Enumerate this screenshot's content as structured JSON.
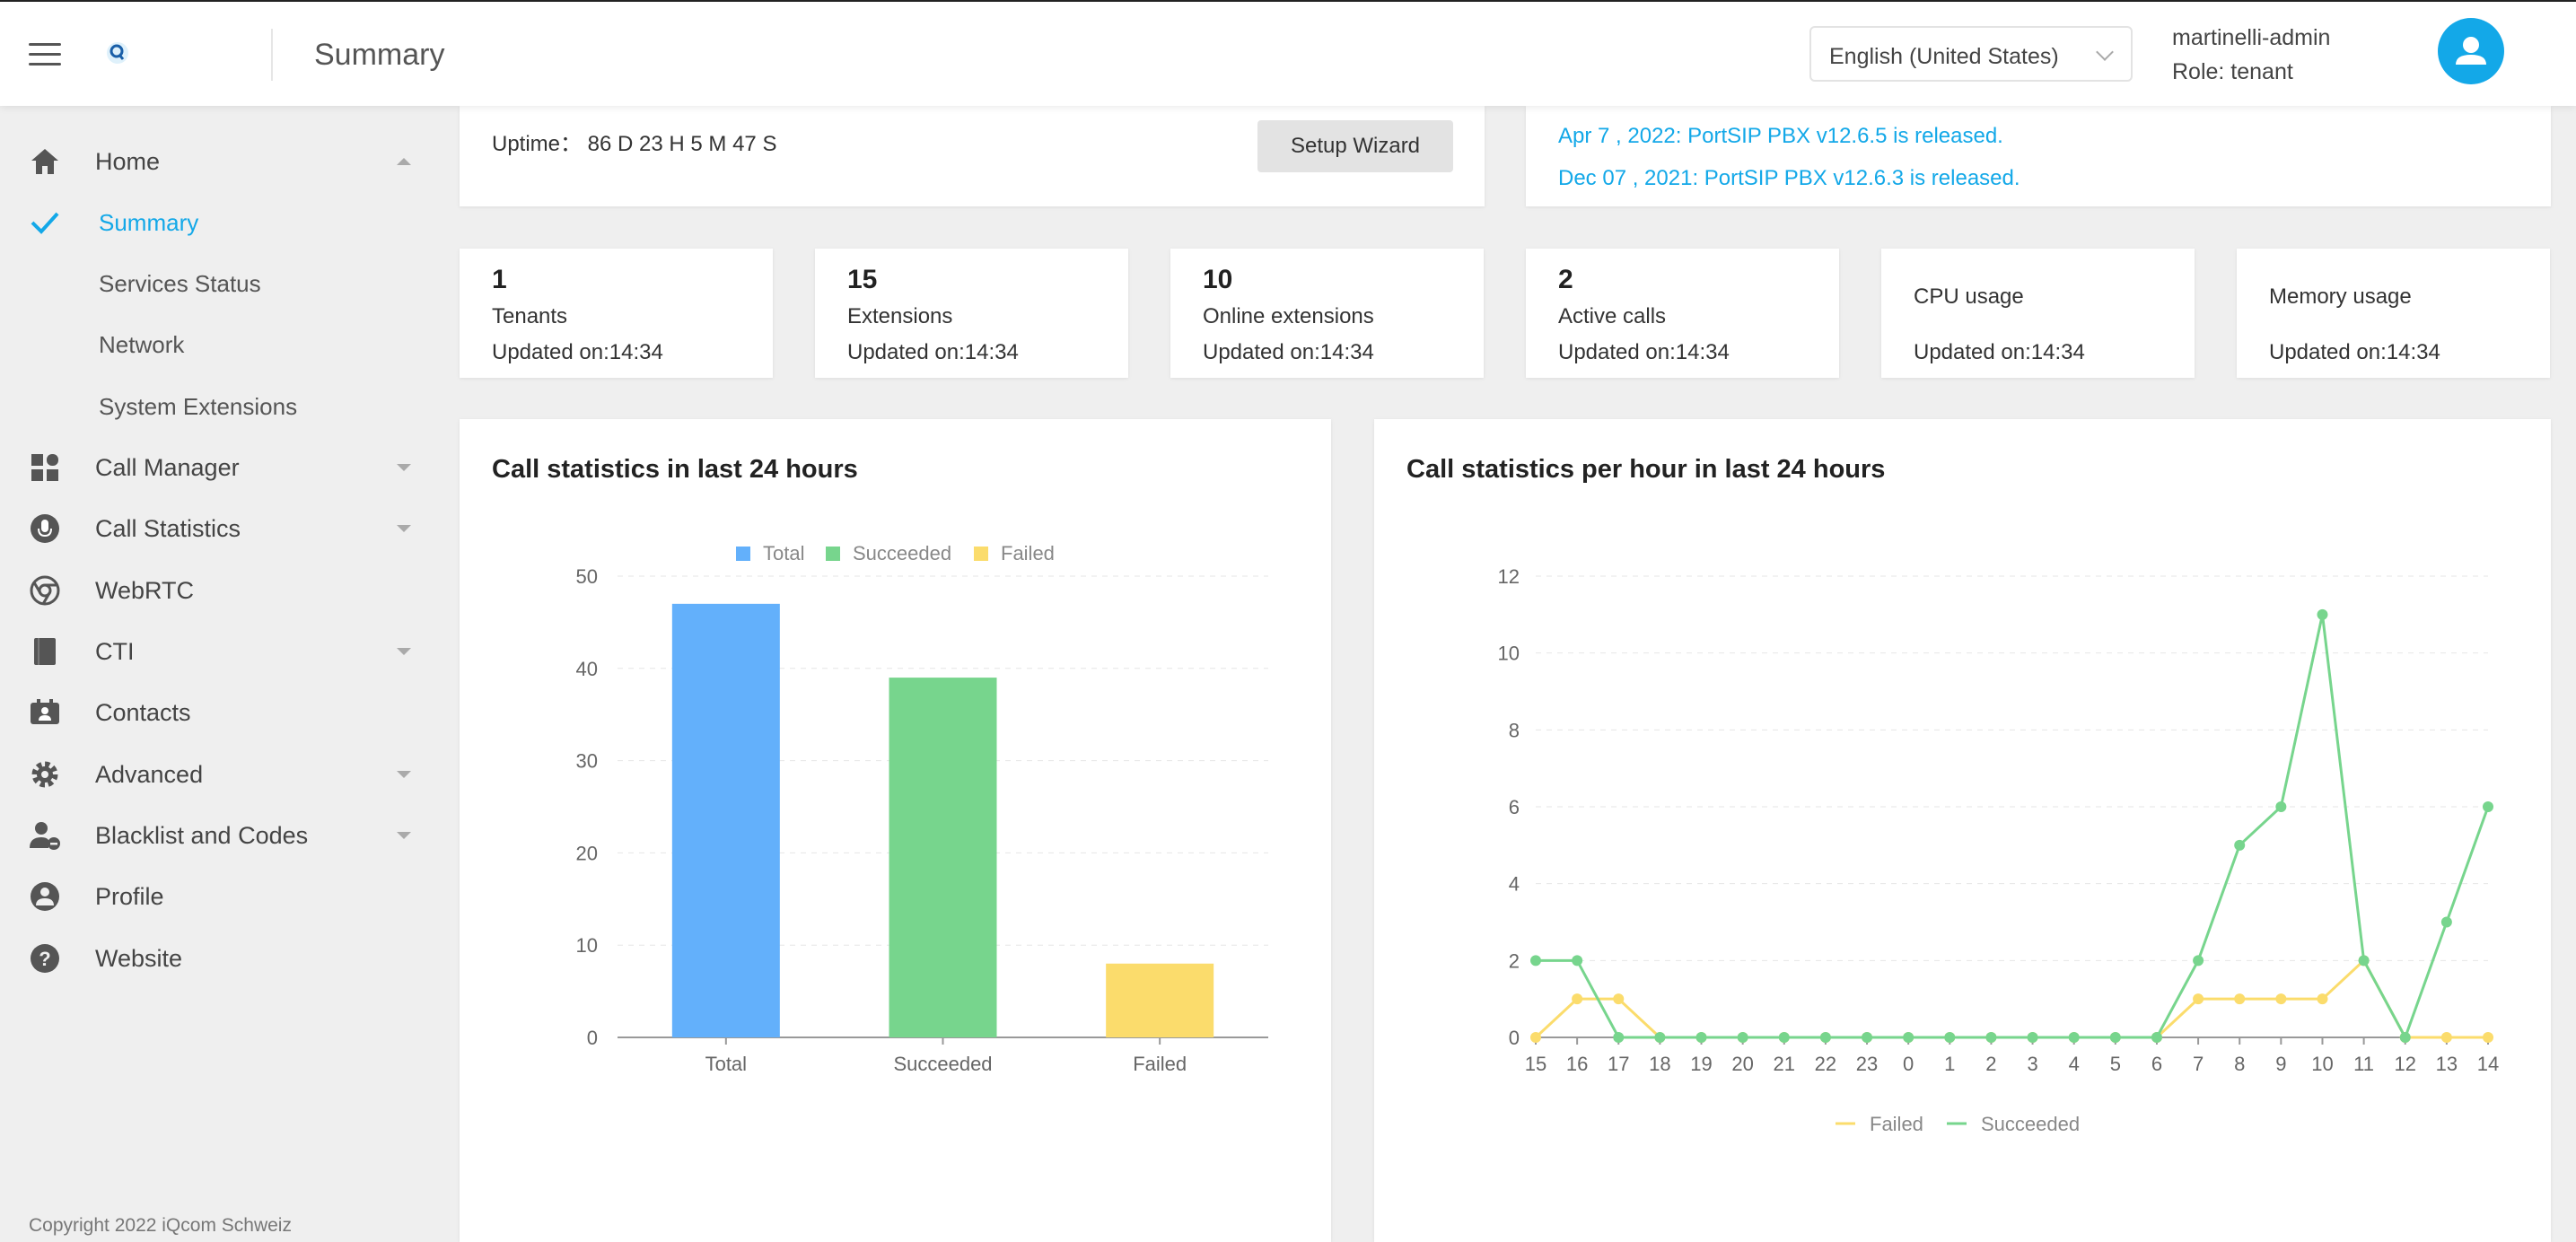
{
  "header": {
    "title": "Summary",
    "language": "English (United States)",
    "user_name": "martinelli-admin",
    "user_role": "Role: tenant"
  },
  "sidebar": {
    "items": [
      {
        "label": "Home",
        "icon": "home-icon",
        "expanded": true
      },
      {
        "label": "Summary",
        "active": true
      },
      {
        "label": "Services Status"
      },
      {
        "label": "Network"
      },
      {
        "label": "System Extensions"
      },
      {
        "label": "Call Manager",
        "icon": "grid-icon"
      },
      {
        "label": "Call Statistics",
        "icon": "microphone-icon"
      },
      {
        "label": "WebRTC",
        "icon": "chrome-icon"
      },
      {
        "label": "CTI",
        "icon": "book-icon"
      },
      {
        "label": "Contacts",
        "icon": "contact-card-icon"
      },
      {
        "label": "Advanced",
        "icon": "gear-icon"
      },
      {
        "label": "Blacklist and Codes",
        "icon": "user-block-icon"
      },
      {
        "label": "Profile",
        "icon": "profile-icon"
      },
      {
        "label": "Website",
        "icon": "help-icon"
      }
    ],
    "copyright": "Copyright 2022 iQcom Schweiz"
  },
  "system": {
    "uptime": "Uptime： 86 D 23 H 5 M 47 S",
    "setup_wizard": "Setup Wizard"
  },
  "news": [
    "Apr 7 , 2022: PortSIP PBX v12.6.5 is released.",
    "Dec 07 , 2021: PortSIP PBX v12.6.3 is released."
  ],
  "stats": [
    {
      "value": "1",
      "label": "Tenants",
      "updated": "Updated on:14:34"
    },
    {
      "value": "15",
      "label": "Extensions",
      "updated": "Updated on:14:34"
    },
    {
      "value": "10",
      "label": "Online extensions",
      "updated": "Updated on:14:34"
    },
    {
      "value": "2",
      "label": "Active calls",
      "updated": "Updated on:14:34"
    },
    {
      "value": "",
      "label": "CPU usage",
      "updated": "Updated on:14:34"
    },
    {
      "value": "",
      "label": "Memory usage",
      "updated": "Updated on:14:34"
    }
  ],
  "colors": {
    "accent": "#13a8e8",
    "total": "#63b0fb",
    "succeeded": "#77d58d",
    "failed": "#fbdc6c"
  },
  "chart_data": [
    {
      "type": "bar",
      "title": "Call statistics in last 24 hours",
      "categories": [
        "Total",
        "Succeeded",
        "Failed"
      ],
      "values": [
        47,
        39,
        8
      ],
      "legend": [
        "Total",
        "Succeeded",
        "Failed"
      ],
      "ylim": [
        0,
        50
      ],
      "yticks": [
        0,
        10,
        20,
        30,
        40,
        50
      ],
      "legend_position": "top-center",
      "grid": true
    },
    {
      "type": "line",
      "title": "Call statistics per hour in last 24 hours",
      "x": [
        "15",
        "16",
        "17",
        "18",
        "19",
        "20",
        "21",
        "22",
        "23",
        "0",
        "1",
        "2",
        "3",
        "4",
        "5",
        "6",
        "7",
        "8",
        "9",
        "10",
        "11",
        "12",
        "13",
        "14"
      ],
      "series": [
        {
          "name": "Failed",
          "values": [
            0,
            1,
            1,
            0,
            0,
            0,
            0,
            0,
            0,
            0,
            0,
            0,
            0,
            0,
            0,
            0,
            1,
            1,
            1,
            1,
            2,
            0,
            0,
            0
          ]
        },
        {
          "name": "Succeeded",
          "values": [
            2,
            2,
            0,
            0,
            0,
            0,
            0,
            0,
            0,
            0,
            0,
            0,
            0,
            0,
            0,
            0,
            2,
            5,
            6,
            11,
            2,
            0,
            3,
            6
          ]
        }
      ],
      "ylim": [
        0,
        12
      ],
      "yticks": [
        0,
        2,
        4,
        6,
        8,
        10,
        12
      ],
      "legend_position": "bottom-center",
      "grid": true
    }
  ]
}
